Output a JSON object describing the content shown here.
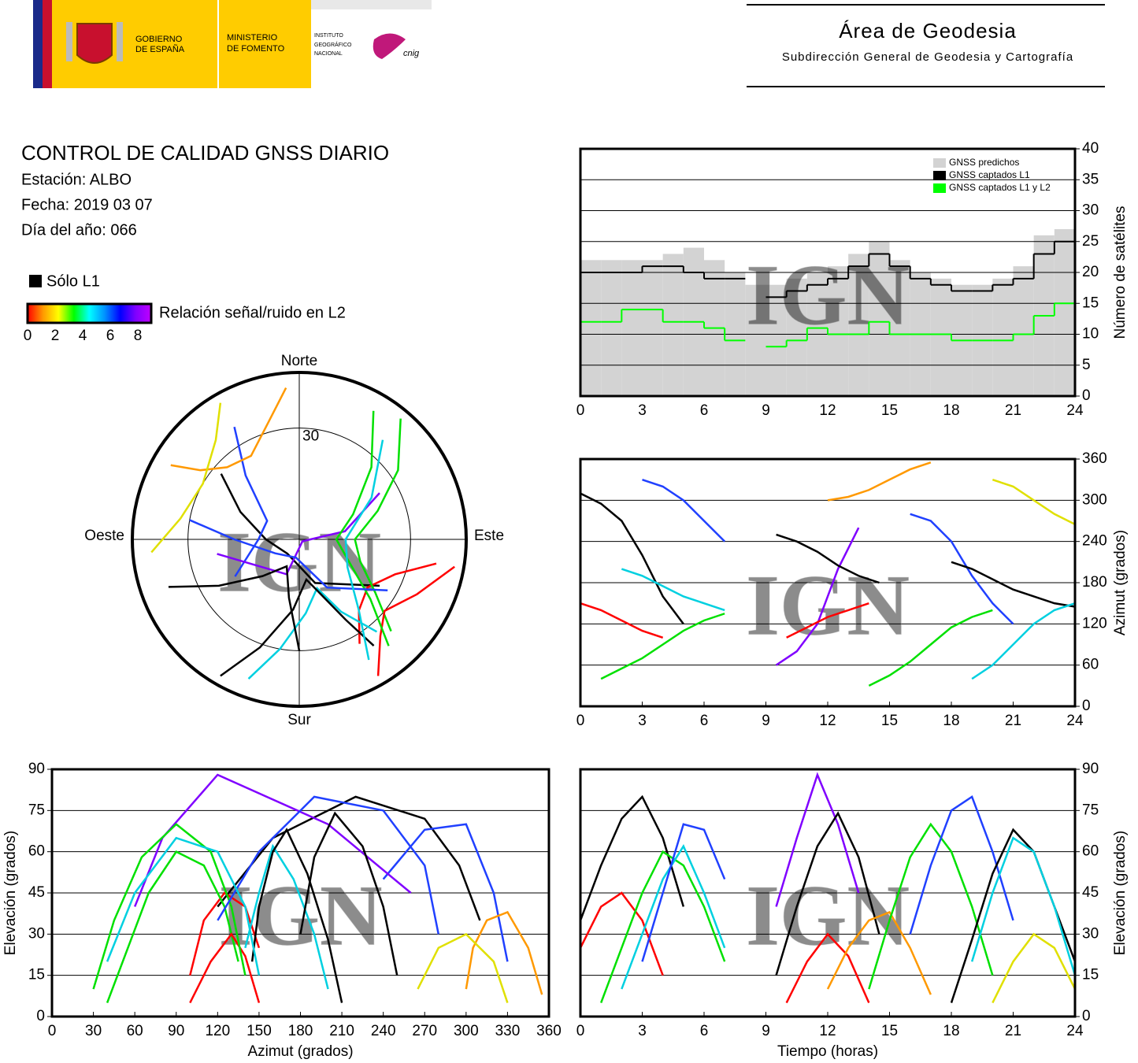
{
  "header": {
    "gov1": "GOBIERNO",
    "gov2": "DE ESPAÑA",
    "min1": "MINISTERIO",
    "min2": "DE FOMENTO",
    "ign1": "INSTITUTO",
    "ign2": "GEOGRÁFICO",
    "ign3": "NACIONAL",
    "cnig": "cnig",
    "area": "Área de Geodesia",
    "sub": "Subdirección General de Geodesia y Cartografía"
  },
  "info": {
    "title": "CONTROL DE CALIDAD GNSS DIARIO",
    "station": "Estación: ALBO",
    "date": "Fecha: 2019 03 07",
    "doy": "Día del año: 066"
  },
  "legend": {
    "l1_only": "Sólo L1",
    "snr_label": "Relación señal/ruido en L2",
    "snr_ticks": [
      0,
      2,
      4,
      6,
      8
    ],
    "snr_colors": [
      "#ff0000",
      "#ff9900",
      "#ffff00",
      "#00ff00",
      "#00ffff",
      "#0090ff",
      "#0000ff",
      "#8000ff",
      "#c000ff"
    ]
  },
  "watermark": "IGN",
  "satellite_tracks": [
    {
      "color": "#000000",
      "time": [
        0,
        1,
        2,
        3,
        4,
        5
      ],
      "azimuth": [
        310,
        295,
        270,
        220,
        160,
        120
      ],
      "elevation": [
        35,
        55,
        72,
        80,
        65,
        40
      ]
    },
    {
      "color": "#ff0000",
      "time": [
        0,
        1,
        2,
        3,
        4
      ],
      "azimuth": [
        150,
        140,
        125,
        110,
        100
      ],
      "elevation": [
        25,
        40,
        45,
        35,
        15
      ]
    },
    {
      "color": "#00e000",
      "time": [
        1,
        2,
        3,
        4,
        5,
        6,
        7
      ],
      "azimuth": [
        40,
        55,
        70,
        90,
        110,
        125,
        135
      ],
      "elevation": [
        5,
        25,
        45,
        60,
        55,
        40,
        20
      ]
    },
    {
      "color": "#00d0e0",
      "time": [
        2,
        3,
        4,
        5,
        6,
        7
      ],
      "azimuth": [
        200,
        190,
        175,
        160,
        150,
        140
      ],
      "elevation": [
        10,
        30,
        50,
        62,
        45,
        25
      ]
    },
    {
      "color": "#2040ff",
      "time": [
        3,
        4,
        5,
        6,
        7
      ],
      "azimuth": [
        330,
        320,
        300,
        270,
        240
      ],
      "elevation": [
        20,
        45,
        70,
        68,
        50
      ]
    },
    {
      "color": "#8000ff",
      "time": [
        9.5,
        10.5,
        11.5,
        12.5,
        13.5
      ],
      "azimuth": [
        60,
        80,
        120,
        200,
        260
      ],
      "elevation": [
        40,
        65,
        88,
        70,
        45
      ]
    },
    {
      "color": "#000000",
      "time": [
        9.5,
        10.5,
        11.5,
        12.5,
        13.5,
        14.5
      ],
      "azimuth": [
        250,
        240,
        225,
        205,
        190,
        180
      ],
      "elevation": [
        15,
        40,
        62,
        74,
        58,
        30
      ]
    },
    {
      "color": "#ff0000",
      "time": [
        10,
        11,
        12,
        13,
        14
      ],
      "azimuth": [
        100,
        115,
        130,
        140,
        150
      ],
      "elevation": [
        5,
        20,
        30,
        22,
        5
      ]
    },
    {
      "color": "#ff9900",
      "time": [
        12,
        13,
        14,
        15,
        16,
        17
      ],
      "azimuth": [
        300,
        305,
        315,
        330,
        345,
        355
      ],
      "elevation": [
        10,
        25,
        35,
        38,
        25,
        8
      ]
    },
    {
      "color": "#00e000",
      "time": [
        14,
        15,
        16,
        17,
        18,
        19,
        20
      ],
      "azimuth": [
        30,
        45,
        65,
        90,
        115,
        130,
        140
      ],
      "elevation": [
        10,
        35,
        58,
        70,
        60,
        40,
        15
      ]
    },
    {
      "color": "#2040ff",
      "time": [
        16,
        17,
        18,
        19,
        20,
        21
      ],
      "azimuth": [
        280,
        270,
        240,
        190,
        150,
        120
      ],
      "elevation": [
        30,
        55,
        75,
        80,
        60,
        35
      ]
    },
    {
      "color": "#000000",
      "time": [
        18,
        19,
        20,
        21,
        22,
        23,
        24
      ],
      "azimuth": [
        210,
        200,
        185,
        170,
        160,
        150,
        145
      ],
      "elevation": [
        5,
        28,
        52,
        68,
        60,
        40,
        20
      ]
    },
    {
      "color": "#00d0e0",
      "time": [
        19,
        20,
        21,
        22,
        23,
        24
      ],
      "azimuth": [
        40,
        60,
        90,
        120,
        140,
        150
      ],
      "elevation": [
        20,
        45,
        65,
        60,
        40,
        15
      ]
    },
    {
      "color": "#e0e000",
      "time": [
        20,
        21,
        22,
        23,
        24
      ],
      "azimuth": [
        330,
        320,
        300,
        280,
        265
      ],
      "elevation": [
        5,
        20,
        30,
        25,
        10
      ]
    }
  ],
  "chart_data": [
    {
      "type": "step",
      "x": [
        0,
        1,
        2,
        3,
        4,
        5,
        6,
        7,
        8,
        9,
        10,
        11,
        12,
        13,
        14,
        15,
        16,
        17,
        18,
        19,
        20,
        21,
        22,
        23
      ],
      "series": [
        {
          "name": "GNSS predichos",
          "color": "#d3d3d3",
          "fill": true,
          "values": [
            22,
            22,
            22,
            22,
            23,
            24,
            22,
            20,
            18,
            18,
            19,
            20,
            21,
            23,
            25,
            22,
            20,
            19,
            18,
            18,
            19,
            21,
            26,
            27
          ]
        },
        {
          "name": "GNSS captados L1",
          "color": "#000000",
          "values": [
            20,
            20,
            20,
            21,
            21,
            20,
            19,
            19,
            null,
            16,
            17,
            18,
            19,
            21,
            23,
            21,
            19,
            18,
            17,
            17,
            18,
            19,
            23,
            25
          ]
        },
        {
          "name": "GNSS captados L1 y L2",
          "color": "#00ff00",
          "values": [
            12,
            12,
            14,
            14,
            12,
            12,
            11,
            9,
            null,
            8,
            9,
            11,
            10,
            10,
            12,
            10,
            10,
            10,
            9,
            9,
            9,
            10,
            13,
            15
          ]
        }
      ],
      "xlim": [
        0,
        24
      ],
      "xticks": [
        0,
        3,
        6,
        9,
        12,
        15,
        18,
        21,
        24
      ],
      "ylim": [
        0,
        40
      ],
      "yticks": [
        0,
        5,
        10,
        15,
        20,
        25,
        30,
        35,
        40
      ],
      "ylabel": "Número de satélites",
      "yaxis": "right",
      "grid": true,
      "legend": "upper right"
    },
    {
      "type": "polar",
      "labels": {
        "north": "Norte",
        "south": "Sur",
        "east": "Este",
        "west": "Oeste"
      },
      "rings": [
        30
      ]
    },
    {
      "type": "track",
      "x_var": "time",
      "y_var": "azimuth",
      "xlim": [
        0,
        24
      ],
      "xticks": [
        0,
        3,
        6,
        9,
        12,
        15,
        18,
        21,
        24
      ],
      "ylim": [
        0,
        360
      ],
      "yticks": [
        0,
        60,
        120,
        180,
        240,
        300,
        360
      ],
      "ylabel": "Azimut (grados)",
      "yaxis": "right",
      "grid": true
    },
    {
      "type": "track",
      "x_var": "azimuth",
      "y_var": "elevation",
      "xlim": [
        0,
        360
      ],
      "xticks": [
        0,
        30,
        60,
        90,
        120,
        150,
        180,
        210,
        240,
        270,
        300,
        330,
        360
      ],
      "ylim": [
        0,
        90
      ],
      "yticks": [
        0,
        15,
        30,
        45,
        60,
        75,
        90
      ],
      "xlabel": "Azimut (grados)",
      "ylabel": "Elevación (grados)",
      "yaxis": "left",
      "grid": true
    },
    {
      "type": "track",
      "x_var": "time",
      "y_var": "elevation",
      "xlim": [
        0,
        24
      ],
      "xticks": [
        0,
        3,
        6,
        9,
        12,
        15,
        18,
        21,
        24
      ],
      "ylim": [
        0,
        90
      ],
      "yticks": [
        0,
        15,
        30,
        45,
        60,
        75,
        90
      ],
      "xlabel": "Tiempo (horas)",
      "ylabel": "Elevación (grados)",
      "yaxis": "right",
      "grid": true
    }
  ]
}
